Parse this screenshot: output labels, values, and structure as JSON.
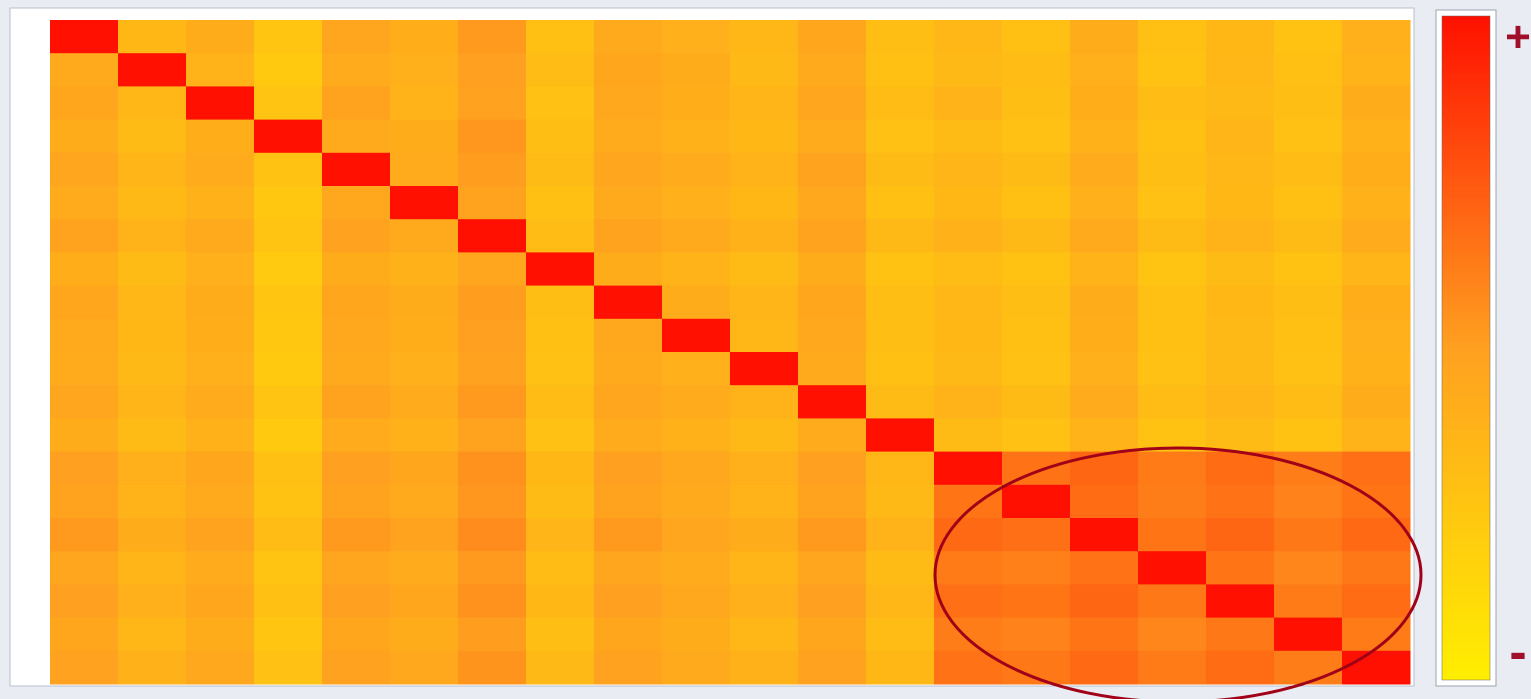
{
  "chart_data": {
    "type": "heatmap",
    "clim": [
      0,
      1
    ],
    "colors": [
      "#ffee00",
      "#ffa020",
      "#ff1000"
    ],
    "colorbar_labels": {
      "max": "+",
      "min": "-"
    },
    "values": [
      [
        1,
        0.35,
        0.42,
        0.26,
        0.47,
        0.41,
        0.52,
        0.3,
        0.44,
        0.4,
        0.36,
        0.46,
        0.31,
        0.36,
        0.3,
        0.42,
        0.3,
        0.35,
        0.28,
        0.4
      ],
      [
        0.44,
        1,
        0.38,
        0.24,
        0.43,
        0.4,
        0.5,
        0.32,
        0.46,
        0.42,
        0.34,
        0.44,
        0.3,
        0.34,
        0.32,
        0.4,
        0.28,
        0.36,
        0.3,
        0.38
      ],
      [
        0.46,
        0.36,
        1,
        0.27,
        0.48,
        0.38,
        0.49,
        0.29,
        0.45,
        0.41,
        0.37,
        0.47,
        0.32,
        0.38,
        0.31,
        0.41,
        0.32,
        0.34,
        0.31,
        0.42
      ],
      [
        0.42,
        0.33,
        0.41,
        1,
        0.44,
        0.42,
        0.53,
        0.31,
        0.43,
        0.39,
        0.35,
        0.43,
        0.29,
        0.33,
        0.29,
        0.39,
        0.3,
        0.37,
        0.29,
        0.39
      ],
      [
        0.47,
        0.37,
        0.43,
        0.28,
        1,
        0.43,
        0.51,
        0.33,
        0.47,
        0.43,
        0.38,
        0.48,
        0.33,
        0.37,
        0.33,
        0.43,
        0.31,
        0.36,
        0.32,
        0.41
      ],
      [
        0.43,
        0.34,
        0.39,
        0.25,
        0.45,
        1,
        0.48,
        0.3,
        0.44,
        0.4,
        0.35,
        0.45,
        0.3,
        0.35,
        0.3,
        0.4,
        0.29,
        0.35,
        0.3,
        0.39
      ],
      [
        0.48,
        0.38,
        0.44,
        0.27,
        0.49,
        0.44,
        1,
        0.32,
        0.48,
        0.44,
        0.39,
        0.48,
        0.34,
        0.39,
        0.34,
        0.44,
        0.33,
        0.38,
        0.33,
        0.43
      ],
      [
        0.41,
        0.33,
        0.4,
        0.23,
        0.42,
        0.39,
        0.47,
        1,
        0.42,
        0.38,
        0.33,
        0.42,
        0.28,
        0.32,
        0.28,
        0.38,
        0.27,
        0.33,
        0.28,
        0.37
      ],
      [
        0.46,
        0.36,
        0.42,
        0.26,
        0.46,
        0.42,
        0.51,
        0.31,
        1,
        0.42,
        0.37,
        0.46,
        0.31,
        0.36,
        0.31,
        0.42,
        0.3,
        0.35,
        0.31,
        0.41
      ],
      [
        0.44,
        0.35,
        0.41,
        0.25,
        0.45,
        0.41,
        0.5,
        0.3,
        0.45,
        1,
        0.36,
        0.45,
        0.31,
        0.35,
        0.3,
        0.41,
        0.3,
        0.34,
        0.3,
        0.4
      ],
      [
        0.43,
        0.34,
        0.4,
        0.24,
        0.44,
        0.4,
        0.49,
        0.29,
        0.44,
        0.4,
        1,
        0.44,
        0.3,
        0.34,
        0.29,
        0.4,
        0.29,
        0.34,
        0.29,
        0.39
      ],
      [
        0.47,
        0.37,
        0.43,
        0.27,
        0.48,
        0.43,
        0.52,
        0.32,
        0.47,
        0.43,
        0.38,
        1,
        0.33,
        0.38,
        0.33,
        0.43,
        0.32,
        0.37,
        0.32,
        0.42
      ],
      [
        0.42,
        0.33,
        0.39,
        0.24,
        0.43,
        0.39,
        0.48,
        0.29,
        0.43,
        0.39,
        0.34,
        0.43,
        1,
        0.33,
        0.29,
        0.38,
        0.28,
        0.33,
        0.28,
        0.38
      ],
      [
        0.5,
        0.4,
        0.46,
        0.3,
        0.5,
        0.46,
        0.55,
        0.35,
        0.5,
        0.45,
        0.4,
        0.5,
        0.36,
        1,
        0.66,
        0.7,
        0.63,
        0.68,
        0.62,
        0.67
      ],
      [
        0.48,
        0.38,
        0.44,
        0.28,
        0.48,
        0.44,
        0.53,
        0.33,
        0.48,
        0.44,
        0.38,
        0.48,
        0.34,
        0.65,
        1,
        0.68,
        0.62,
        0.66,
        0.6,
        0.65
      ],
      [
        0.52,
        0.42,
        0.48,
        0.32,
        0.52,
        0.48,
        0.57,
        0.37,
        0.52,
        0.47,
        0.42,
        0.52,
        0.38,
        0.69,
        0.67,
        1,
        0.65,
        0.7,
        0.64,
        0.69
      ],
      [
        0.47,
        0.37,
        0.43,
        0.27,
        0.47,
        0.43,
        0.52,
        0.32,
        0.47,
        0.43,
        0.37,
        0.47,
        0.33,
        0.63,
        0.61,
        0.66,
        1,
        0.65,
        0.59,
        0.64
      ],
      [
        0.5,
        0.4,
        0.46,
        0.3,
        0.5,
        0.46,
        0.55,
        0.35,
        0.5,
        0.45,
        0.4,
        0.5,
        0.36,
        0.67,
        0.65,
        0.7,
        0.64,
        1,
        0.63,
        0.68
      ],
      [
        0.46,
        0.36,
        0.42,
        0.26,
        0.46,
        0.42,
        0.51,
        0.31,
        0.46,
        0.42,
        0.36,
        0.46,
        0.32,
        0.62,
        0.6,
        0.65,
        0.59,
        0.64,
        1,
        0.63
      ],
      [
        0.49,
        0.39,
        0.45,
        0.29,
        0.49,
        0.45,
        0.54,
        0.34,
        0.49,
        0.44,
        0.39,
        0.49,
        0.35,
        0.66,
        0.64,
        0.69,
        0.63,
        0.68,
        0.62,
        1
      ]
    ]
  }
}
